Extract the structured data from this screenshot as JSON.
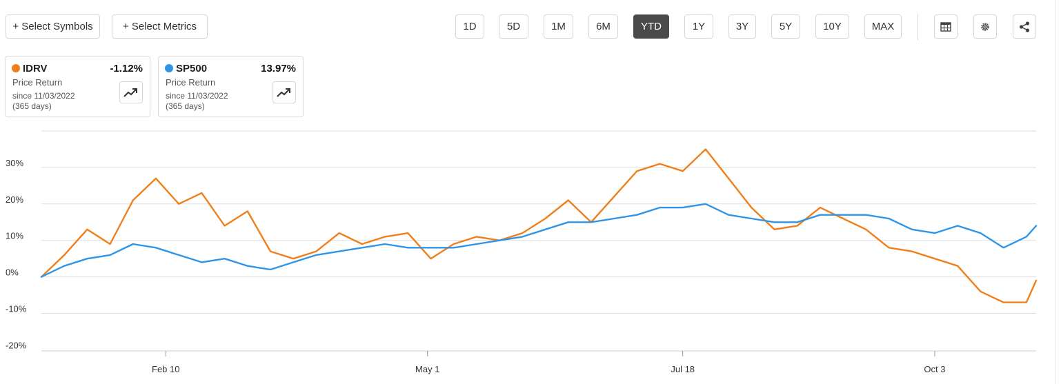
{
  "toolbar": {
    "select_symbols": "+ Select Symbols",
    "select_metrics": "+ Select Metrics",
    "ranges": [
      "1D",
      "5D",
      "1M",
      "6M",
      "YTD",
      "1Y",
      "3Y",
      "5Y",
      "10Y",
      "MAX"
    ],
    "active_range": "YTD",
    "icons": [
      "table-icon",
      "gear-icon",
      "share-icon"
    ]
  },
  "cards": [
    {
      "symbol": "IDRV",
      "change": "-1.12%",
      "metric": "Price Return",
      "since": "since 11/03/2022",
      "days": "(365 days)",
      "color": "#f07f1b"
    },
    {
      "symbol": "SP500",
      "change": "13.97%",
      "metric": "Price Return",
      "since": "since 11/03/2022",
      "days": "(365 days)",
      "color": "#2e95e8"
    }
  ],
  "chart_data": {
    "type": "line",
    "title": "",
    "xlabel": "",
    "ylabel": "",
    "x_ticks": [
      "Feb 10",
      "May 1",
      "Jul 18",
      "Oct 3"
    ],
    "y_ticks": [
      "30%",
      "20%",
      "10%",
      "0%",
      "-10%",
      "-20%"
    ],
    "ylim": [
      -20,
      40
    ],
    "grid": true,
    "legend": "cards-top-left",
    "series": [
      {
        "name": "IDRV",
        "color": "#f07f1b",
        "x": [
          "2023-01-03",
          "2023-01-10",
          "2023-01-17",
          "2023-01-24",
          "2023-01-31",
          "2023-02-07",
          "2023-02-14",
          "2023-02-21",
          "2023-02-28",
          "2023-03-07",
          "2023-03-14",
          "2023-03-21",
          "2023-03-28",
          "2023-04-04",
          "2023-04-11",
          "2023-04-18",
          "2023-04-25",
          "2023-05-02",
          "2023-05-09",
          "2023-05-16",
          "2023-05-23",
          "2023-05-30",
          "2023-06-06",
          "2023-06-13",
          "2023-06-20",
          "2023-06-27",
          "2023-07-04",
          "2023-07-11",
          "2023-07-18",
          "2023-07-25",
          "2023-08-01",
          "2023-08-08",
          "2023-08-15",
          "2023-08-22",
          "2023-08-29",
          "2023-09-05",
          "2023-09-12",
          "2023-09-19",
          "2023-09-26",
          "2023-10-03",
          "2023-10-10",
          "2023-10-17",
          "2023-10-24",
          "2023-10-31",
          "2023-11-03"
        ],
        "values": [
          0,
          6,
          13,
          9,
          21,
          27,
          20,
          23,
          14,
          18,
          7,
          5,
          7,
          12,
          9,
          11,
          12,
          5,
          9,
          11,
          10,
          12,
          16,
          21,
          15,
          22,
          29,
          31,
          29,
          35,
          27,
          19,
          13,
          14,
          19,
          16,
          13,
          8,
          7,
          5,
          3,
          -4,
          -7,
          -7,
          -1
        ]
      },
      {
        "name": "SP500",
        "color": "#2e95e8",
        "x": [
          "2023-01-03",
          "2023-01-10",
          "2023-01-17",
          "2023-01-24",
          "2023-01-31",
          "2023-02-07",
          "2023-02-14",
          "2023-02-21",
          "2023-02-28",
          "2023-03-07",
          "2023-03-14",
          "2023-03-21",
          "2023-03-28",
          "2023-04-04",
          "2023-04-11",
          "2023-04-18",
          "2023-04-25",
          "2023-05-02",
          "2023-05-09",
          "2023-05-16",
          "2023-05-23",
          "2023-05-30",
          "2023-06-06",
          "2023-06-13",
          "2023-06-20",
          "2023-06-27",
          "2023-07-04",
          "2023-07-11",
          "2023-07-18",
          "2023-07-25",
          "2023-08-01",
          "2023-08-08",
          "2023-08-15",
          "2023-08-22",
          "2023-08-29",
          "2023-09-05",
          "2023-09-12",
          "2023-09-19",
          "2023-09-26",
          "2023-10-03",
          "2023-10-10",
          "2023-10-17",
          "2023-10-24",
          "2023-10-31",
          "2023-11-03"
        ],
        "values": [
          0,
          3,
          5,
          6,
          9,
          8,
          6,
          4,
          5,
          3,
          2,
          4,
          6,
          7,
          8,
          9,
          8,
          8,
          8,
          9,
          10,
          11,
          13,
          15,
          15,
          16,
          17,
          19,
          19,
          20,
          17,
          16,
          15,
          15,
          17,
          17,
          17,
          16,
          13,
          12,
          14,
          12,
          8,
          11,
          14
        ]
      }
    ]
  }
}
